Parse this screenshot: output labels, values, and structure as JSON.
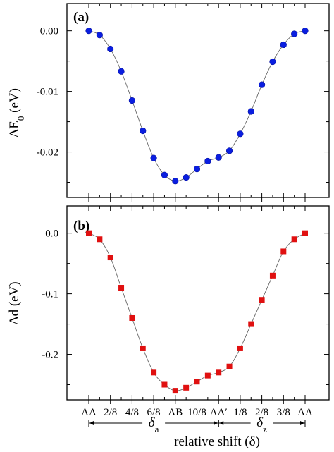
{
  "chart_data": [
    {
      "type": "line",
      "panel_label": "(a)",
      "ylabel": "ΔE",
      "ylabel_sub": "0",
      "ylabel_unit": " (eV)",
      "ylim": [
        -0.0275,
        0.0045
      ],
      "yticks": [
        "0.00",
        "-0.01",
        "-0.02"
      ],
      "ytick_values": [
        0.0,
        -0.01,
        -0.02
      ],
      "x": [
        0,
        1,
        2,
        3,
        4,
        5,
        6,
        7,
        8,
        9,
        10,
        11,
        12,
        13,
        14,
        15,
        16,
        17,
        18,
        19,
        20
      ],
      "series": [
        {
          "marker": "circle",
          "color": "#0a1ee0",
          "values": [
            0.0,
            -0.0007,
            -0.003,
            -0.0067,
            -0.0115,
            -0.0165,
            -0.021,
            -0.0238,
            -0.0248,
            -0.0242,
            -0.0228,
            -0.0215,
            -0.0209,
            -0.0198,
            -0.017,
            -0.0133,
            -0.0089,
            -0.0051,
            -0.0023,
            -0.0005,
            0.0
          ]
        }
      ],
      "grid": false
    },
    {
      "type": "line",
      "panel_label": "(b)",
      "ylabel": "Δd",
      "ylabel_sub": "",
      "ylabel_unit": " (eV)",
      "ylim": [
        -0.275,
        0.045
      ],
      "yticks": [
        "0.0",
        "-0.1",
        "-0.2"
      ],
      "ytick_values": [
        0.0,
        -0.1,
        -0.2
      ],
      "x": [
        0,
        1,
        2,
        3,
        4,
        5,
        6,
        7,
        8,
        9,
        10,
        11,
        12,
        13,
        14,
        15,
        16,
        17,
        18,
        19,
        20
      ],
      "xtick_labels": [
        "AA",
        "2/8",
        "4/8",
        "6/8",
        "AB",
        "10/8",
        "AA′",
        "1/8",
        "2/8",
        "3/8",
        "AA"
      ],
      "xtick_positions": [
        0,
        2,
        4,
        6,
        8,
        10,
        12,
        14,
        16,
        18,
        20
      ],
      "xlabel": "relative shift (δ)",
      "series": [
        {
          "marker": "square",
          "color": "#e01010",
          "values": [
            0.0,
            -0.01,
            -0.04,
            -0.09,
            -0.14,
            -0.19,
            -0.23,
            -0.25,
            -0.26,
            -0.255,
            -0.245,
            -0.235,
            -0.23,
            -0.22,
            -0.19,
            -0.15,
            -0.11,
            -0.07,
            -0.03,
            -0.01,
            0.0
          ]
        }
      ],
      "bracket_labels": [
        {
          "text": "δ",
          "sub": "a",
          "from": 0,
          "to": 12
        },
        {
          "text": "δ",
          "sub": "z",
          "from": 12,
          "to": 20
        }
      ],
      "grid": false
    }
  ]
}
